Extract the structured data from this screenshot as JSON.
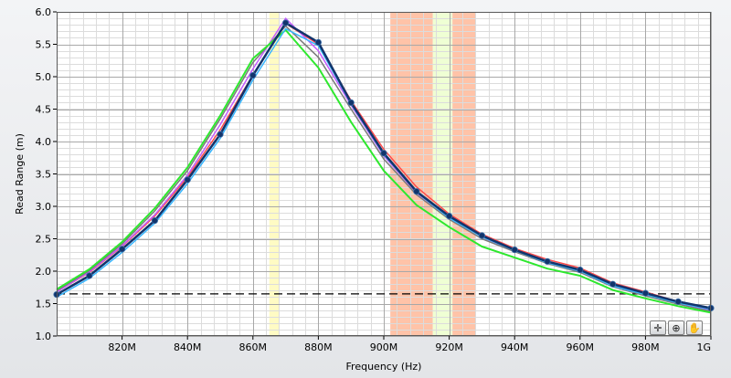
{
  "chart_data": {
    "type": "line",
    "xlabel": "Frequency (Hz)",
    "ylabel": "Read Range (m)",
    "x": [
      800,
      810,
      820,
      830,
      840,
      850,
      860,
      870,
      880,
      890,
      900,
      910,
      920,
      930,
      940,
      950,
      960,
      970,
      980,
      990,
      1000
    ],
    "xlim": [
      800,
      1000
    ],
    "ylim": [
      1.0,
      6.0
    ],
    "x_ticks": [
      {
        "value": 820,
        "label": "820M"
      },
      {
        "value": 840,
        "label": "840M"
      },
      {
        "value": 860,
        "label": "860M"
      },
      {
        "value": 880,
        "label": "880M"
      },
      {
        "value": 900,
        "label": "900M"
      },
      {
        "value": 920,
        "label": "920M"
      },
      {
        "value": 940,
        "label": "940M"
      },
      {
        "value": 960,
        "label": "960M"
      },
      {
        "value": 980,
        "label": "980M"
      },
      {
        "value": 1000,
        "label": "1G"
      }
    ],
    "y_ticks": [
      {
        "value": 1.0,
        "label": "1.0"
      },
      {
        "value": 1.5,
        "label": "1.5"
      },
      {
        "value": 2.0,
        "label": "2.0"
      },
      {
        "value": 2.5,
        "label": "2.5"
      },
      {
        "value": 3.0,
        "label": "3.0"
      },
      {
        "value": 3.5,
        "label": "3.5"
      },
      {
        "value": 4.0,
        "label": "4.0"
      },
      {
        "value": 4.5,
        "label": "4.5"
      },
      {
        "value": 5.0,
        "label": "5.0"
      },
      {
        "value": 5.5,
        "label": "5.5"
      },
      {
        "value": 6.0,
        "label": "6.0"
      }
    ],
    "grid": true,
    "minor_grid_per_major_x": 4,
    "minor_grid_per_major_y": 4,
    "bands": [
      {
        "x0": 865,
        "x1": 868,
        "color": "#fffbc4"
      },
      {
        "x0": 902,
        "x1": 915,
        "color": "#ffc3a8"
      },
      {
        "x0": 915,
        "x1": 921,
        "color": "#efffd4"
      },
      {
        "x0": 921,
        "x1": 928,
        "color": "#ffc3a8"
      }
    ],
    "threshold": {
      "y": 1.65,
      "color": "#000000",
      "style": "dashed"
    },
    "series": [
      {
        "color": "#ff4b4b",
        "width": 1.5,
        "markers": false,
        "values": [
          1.68,
          1.98,
          2.38,
          2.85,
          3.45,
          4.18,
          5.03,
          5.82,
          5.5,
          4.63,
          3.88,
          3.3,
          2.88,
          2.57,
          2.35,
          2.18,
          2.05,
          1.82,
          1.68,
          1.53,
          1.42
        ]
      },
      {
        "color": "#c45bff",
        "width": 1.5,
        "markers": false,
        "values": [
          1.68,
          1.99,
          2.39,
          2.87,
          3.48,
          4.26,
          5.12,
          5.9,
          5.4,
          4.56,
          3.78,
          3.21,
          2.83,
          2.53,
          2.31,
          2.14,
          2.0,
          1.78,
          1.64,
          1.5,
          1.4
        ]
      },
      {
        "color": "#7a7a7a",
        "width": 1.5,
        "markers": false,
        "values": [
          1.7,
          2.01,
          2.42,
          2.93,
          3.55,
          4.35,
          5.22,
          5.78,
          5.3,
          4.5,
          3.73,
          3.18,
          2.8,
          2.5,
          2.3,
          2.12,
          1.98,
          1.76,
          1.62,
          1.49,
          1.38
        ]
      },
      {
        "color": "#2ee82e",
        "width": 2,
        "markers": false,
        "values": [
          1.72,
          2.03,
          2.45,
          2.97,
          3.6,
          4.4,
          5.28,
          5.72,
          5.14,
          4.3,
          3.55,
          3.02,
          2.68,
          2.38,
          2.21,
          2.04,
          1.93,
          1.71,
          1.58,
          1.46,
          1.36
        ]
      },
      {
        "color": "#38b6ff",
        "width": 1.5,
        "markers": false,
        "values": [
          1.6,
          1.89,
          2.29,
          2.74,
          3.35,
          4.05,
          4.95,
          5.74,
          5.48,
          4.58,
          3.8,
          3.22,
          2.82,
          2.53,
          2.32,
          2.13,
          2.0,
          1.77,
          1.64,
          1.51,
          1.41
        ]
      },
      {
        "color": "#12346b",
        "width": 2.5,
        "markers": true,
        "values": [
          1.64,
          1.93,
          2.34,
          2.78,
          3.41,
          4.11,
          5.02,
          5.83,
          5.53,
          4.6,
          3.82,
          3.23,
          2.85,
          2.55,
          2.33,
          2.15,
          2.02,
          1.8,
          1.66,
          1.53,
          1.43
        ]
      }
    ]
  },
  "toolbar": {
    "tools": [
      {
        "name": "cursor-tool-button",
        "icon": "crosshair-icon",
        "glyph": "✛"
      },
      {
        "name": "zoom-tool-button",
        "icon": "zoom-icon",
        "glyph": "⊕"
      },
      {
        "name": "pan-tool-button",
        "icon": "hand-icon",
        "glyph": "✋"
      }
    ]
  }
}
